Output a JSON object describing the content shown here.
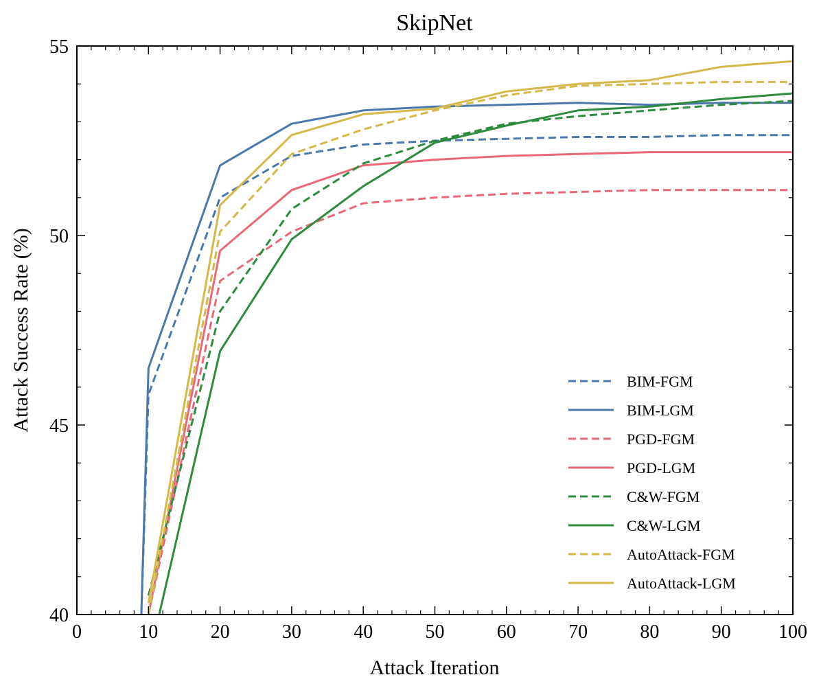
{
  "chart_data": {
    "type": "line",
    "title": "SkipNet",
    "xlabel": "Attack Iteration",
    "ylabel": "Attack Success Rate (%)",
    "xlim": [
      0,
      100
    ],
    "ylim": [
      40,
      55
    ],
    "xticks": [
      0,
      10,
      20,
      30,
      40,
      50,
      60,
      70,
      80,
      90,
      100
    ],
    "yticks": [
      40,
      45,
      50,
      55
    ],
    "legend_position": "lower-right",
    "series": [
      {
        "name": "BIM-FGM",
        "style": "dashed",
        "color": "#4a78ad",
        "x": [
          9,
          10,
          20,
          30,
          40,
          50,
          60,
          70,
          80,
          90,
          100
        ],
        "y": [
          40.0,
          45.8,
          51.0,
          52.1,
          52.4,
          52.5,
          52.55,
          52.6,
          52.6,
          52.65,
          52.65
        ]
      },
      {
        "name": "BIM-LGM",
        "style": "solid",
        "color": "#4a78ad",
        "x": [
          9,
          10,
          20,
          30,
          40,
          50,
          60,
          70,
          80,
          90,
          100
        ],
        "y": [
          40.0,
          46.5,
          51.85,
          52.95,
          53.3,
          53.4,
          53.45,
          53.5,
          53.45,
          53.5,
          53.5
        ]
      },
      {
        "name": "PGD-FGM",
        "style": "dashed",
        "color": "#e96978",
        "x": [
          10,
          20,
          30,
          40,
          50,
          60,
          70,
          80,
          90,
          100
        ],
        "y": [
          40.0,
          48.8,
          50.1,
          50.85,
          51.0,
          51.1,
          51.15,
          51.2,
          51.2,
          51.2
        ]
      },
      {
        "name": "PGD-LGM",
        "style": "solid",
        "color": "#e96978",
        "x": [
          10,
          20,
          30,
          40,
          50,
          60,
          70,
          80,
          90,
          100
        ],
        "y": [
          40.0,
          49.6,
          51.2,
          51.85,
          52.0,
          52.1,
          52.15,
          52.2,
          52.2,
          52.2
        ]
      },
      {
        "name": "C&W-FGM",
        "style": "dashed",
        "color": "#2e8b3e",
        "x": [
          10,
          20,
          30,
          40,
          50,
          60,
          70,
          80,
          90,
          100
        ],
        "y": [
          40.5,
          48.0,
          50.7,
          51.9,
          52.5,
          52.95,
          53.15,
          53.3,
          53.45,
          53.55
        ]
      },
      {
        "name": "C&W-LGM",
        "style": "solid",
        "color": "#2e8b3e",
        "x": [
          11.5,
          20,
          30,
          40,
          50,
          60,
          70,
          80,
          90,
          100
        ],
        "y": [
          40.0,
          46.95,
          49.9,
          51.3,
          52.45,
          52.9,
          53.3,
          53.4,
          53.6,
          53.75
        ]
      },
      {
        "name": "AutoAttack-FGM",
        "style": "dashed",
        "color": "#d4b84a",
        "x": [
          10,
          20,
          30,
          40,
          50,
          60,
          70,
          80,
          90,
          100
        ],
        "y": [
          40.0,
          50.1,
          52.15,
          52.8,
          53.3,
          53.7,
          53.95,
          54.0,
          54.05,
          54.05
        ]
      },
      {
        "name": "AutoAttack-LGM",
        "style": "solid",
        "color": "#d4b84a",
        "x": [
          10,
          20,
          30,
          40,
          50,
          60,
          70,
          80,
          90,
          100
        ],
        "y": [
          40.3,
          50.8,
          52.65,
          53.2,
          53.35,
          53.8,
          54.0,
          54.1,
          54.45,
          54.6
        ]
      }
    ]
  }
}
